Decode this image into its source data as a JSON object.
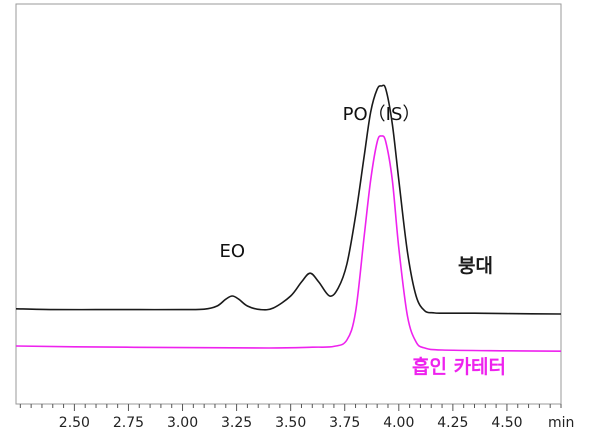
{
  "chart_data": {
    "type": "line",
    "xlim": [
      2.23,
      4.75
    ],
    "ylim": [
      0,
      1
    ],
    "x_tick_labels": [
      "2.50",
      "2.75",
      "3.00",
      "3.25",
      "3.50",
      "3.75",
      "4.00",
      "4.25",
      "4.50"
    ],
    "x_tick_values": [
      2.5,
      2.75,
      3.0,
      3.25,
      3.5,
      3.75,
      4.0,
      4.25,
      4.5
    ],
    "x_unit": "min",
    "grid": false,
    "series": [
      {
        "name": "붕대",
        "color": "#1a1a1a",
        "x": [
          2.23,
          2.4,
          2.6,
          2.8,
          3.0,
          3.1,
          3.16,
          3.2,
          3.23,
          3.26,
          3.3,
          3.36,
          3.42,
          3.5,
          3.55,
          3.59,
          3.63,
          3.68,
          3.72,
          3.76,
          3.8,
          3.84,
          3.87,
          3.9,
          3.92,
          3.94,
          3.97,
          4.0,
          4.04,
          4.08,
          4.12,
          4.16,
          4.2,
          4.35,
          4.5,
          4.75
        ],
        "y": [
          0.238,
          0.236,
          0.236,
          0.236,
          0.236,
          0.237,
          0.245,
          0.262,
          0.27,
          0.262,
          0.245,
          0.236,
          0.24,
          0.27,
          0.305,
          0.327,
          0.305,
          0.27,
          0.29,
          0.35,
          0.47,
          0.62,
          0.73,
          0.787,
          0.795,
          0.787,
          0.7,
          0.56,
          0.38,
          0.27,
          0.233,
          0.228,
          0.227,
          0.227,
          0.226,
          0.225
        ]
      },
      {
        "name": "흡인 카테터",
        "color": "#ee22ee",
        "x": [
          2.23,
          2.5,
          3.0,
          3.4,
          3.6,
          3.7,
          3.76,
          3.8,
          3.84,
          3.87,
          3.9,
          3.92,
          3.94,
          3.97,
          4.0,
          4.04,
          4.08,
          4.12,
          4.2,
          4.5,
          4.75
        ],
        "y": [
          0.145,
          0.143,
          0.141,
          0.14,
          0.142,
          0.144,
          0.16,
          0.23,
          0.42,
          0.56,
          0.655,
          0.67,
          0.655,
          0.56,
          0.39,
          0.22,
          0.155,
          0.14,
          0.135,
          0.133,
          0.132
        ]
      }
    ],
    "annotations": [
      {
        "text": "EO",
        "x": 3.23
      },
      {
        "text": "PO（IS）",
        "x": 3.92
      }
    ]
  }
}
